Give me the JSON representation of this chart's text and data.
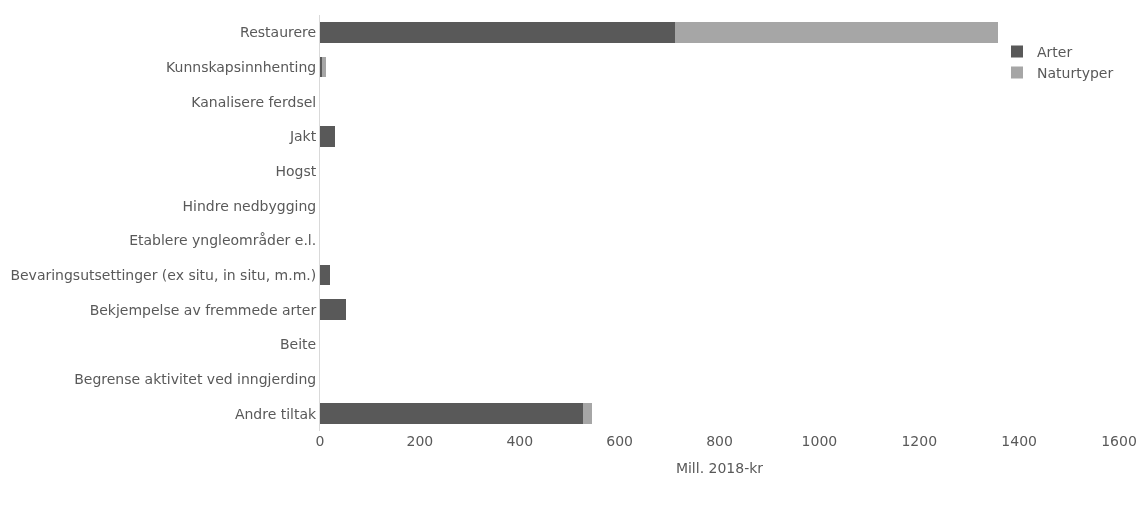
{
  "chart_data": {
    "type": "bar",
    "orientation": "horizontal",
    "stacked": true,
    "xlabel": "Mill. 2018-kr",
    "categories": [
      "Restaurere",
      "Kunnskapsinnhenting",
      "Kanalisere ferdsel",
      "Jakt",
      "Hogst",
      "Hindre nedbygging",
      "Etablere yngleområder e.l.",
      "Bevaringsutsettinger (ex situ, in situ, m.m.)",
      "Bekjempelse av fremmede arter",
      "Beite",
      "Begrense aktivitet ved inngjerding",
      "Andre tiltak"
    ],
    "series": [
      {
        "name": "Arter",
        "color": "#595959",
        "values": [
          711,
          3,
          0,
          30,
          0,
          0,
          0,
          20,
          52,
          0,
          0,
          527
        ]
      },
      {
        "name": "Naturtyper",
        "color": "#a6a6a6",
        "values": [
          646,
          10,
          0,
          0,
          0,
          0,
          0,
          0,
          0,
          0,
          0,
          17
        ]
      }
    ],
    "xlim": [
      0,
      1600
    ],
    "xticks": [
      0,
      200,
      400,
      600,
      800,
      1000,
      1200,
      1400,
      1600
    ],
    "legend": "top right"
  }
}
